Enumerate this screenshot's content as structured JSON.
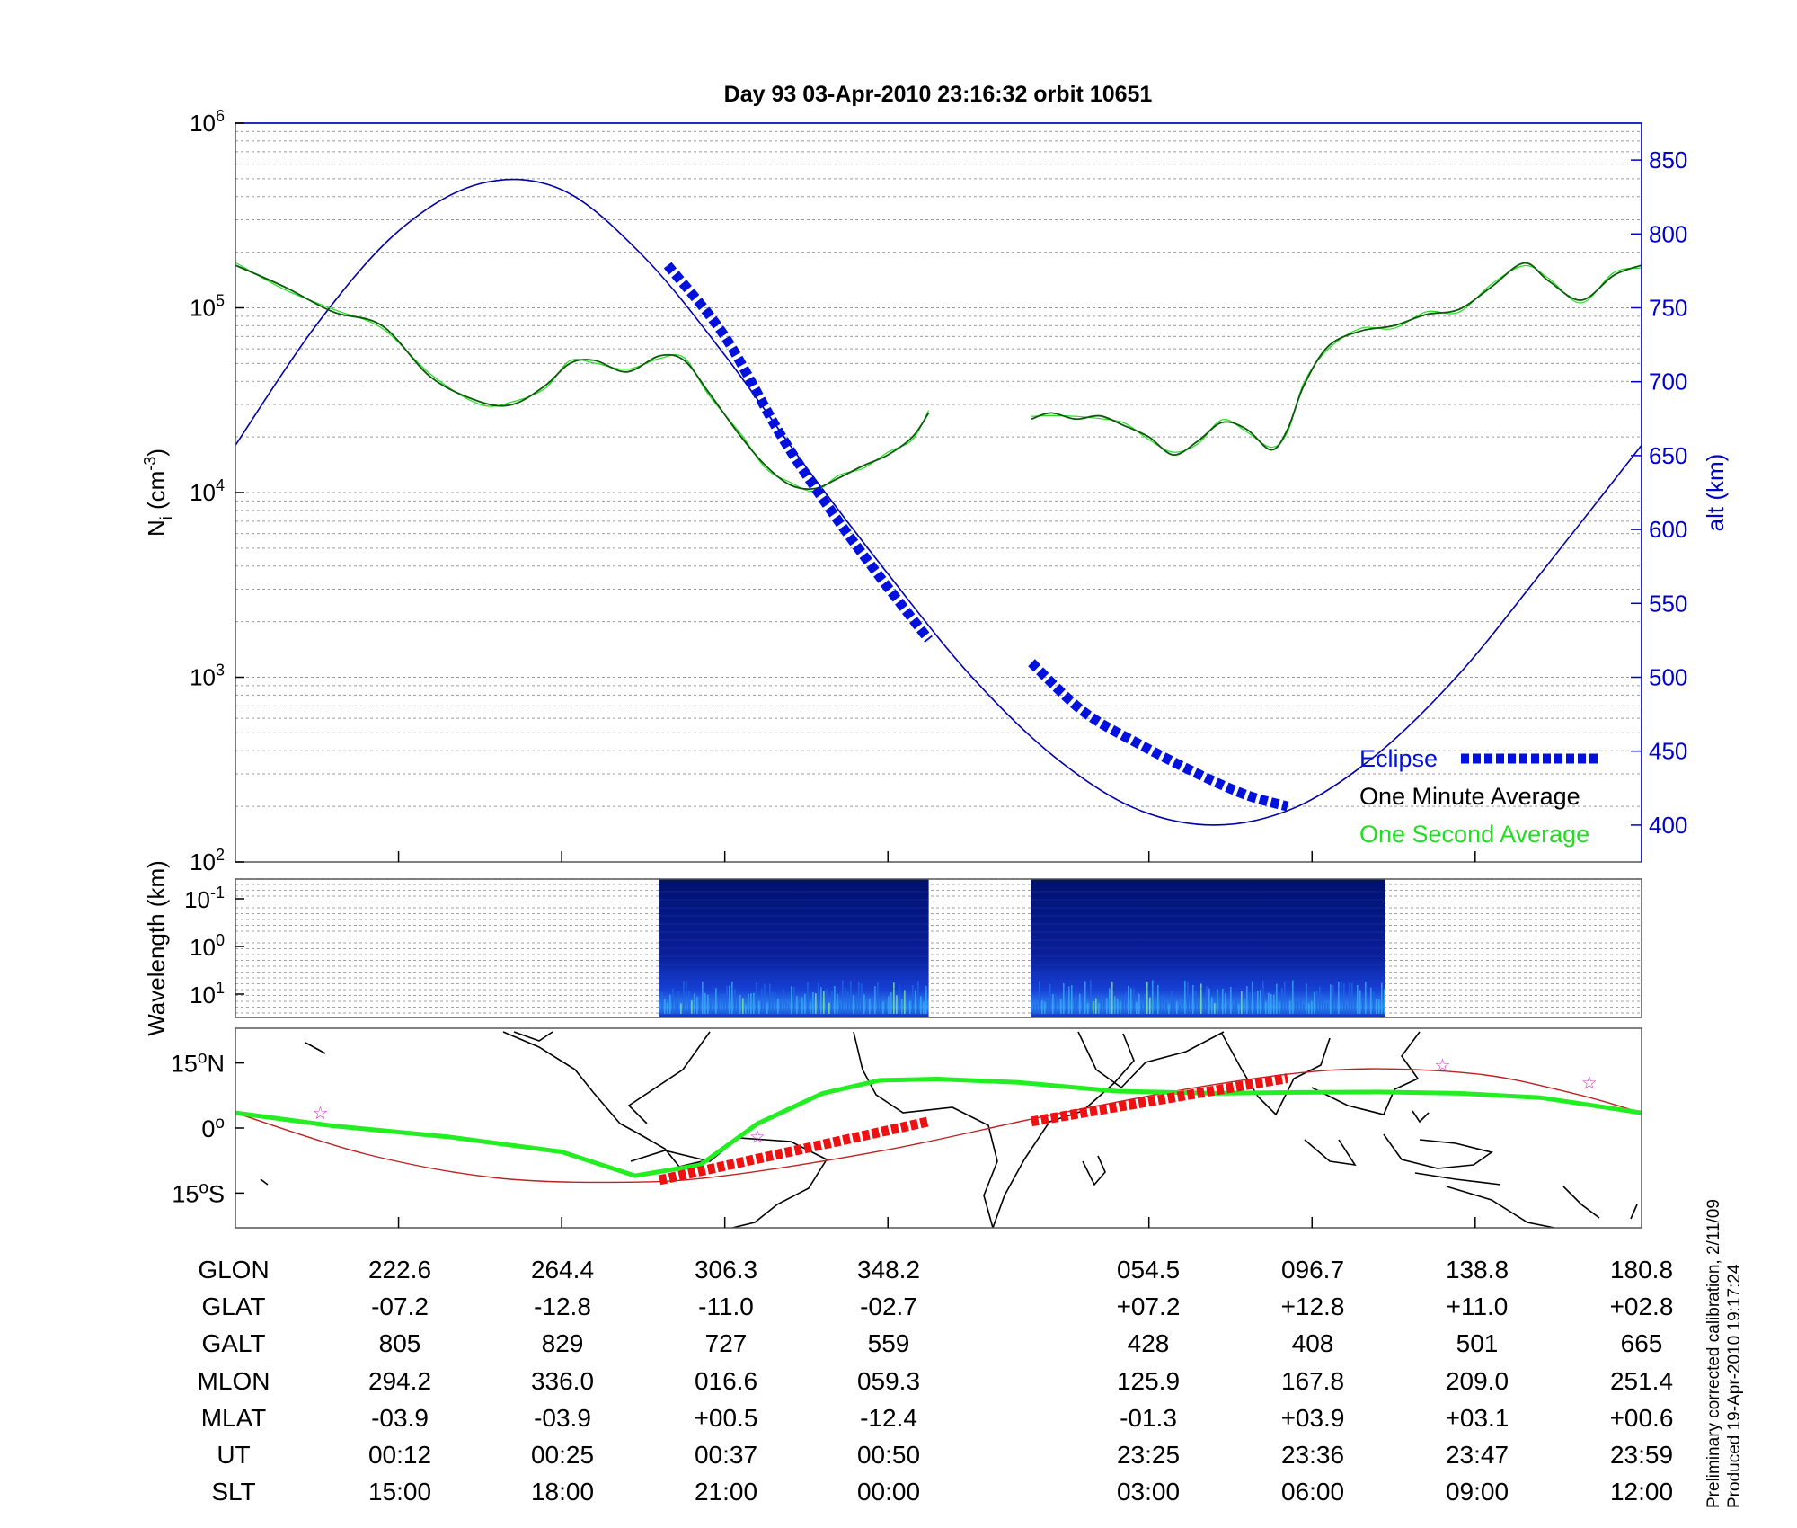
{
  "title": "Day 93  03-Apr-2010 23:16:32   orbit 10651",
  "colors": {
    "density": "#0a5a0a",
    "density_1s": "#22dd22",
    "eclipse": "#0011dd",
    "altitude": "#0000aa",
    "track_eclipse": "#ee1111",
    "track_green": "#22ee22",
    "track_red": "#bb2222",
    "stars": "#cc33cc"
  },
  "chart_data": [
    {
      "type": "line",
      "panel": "ion density / altitude",
      "ylabel_left": "N_i (cm^-3)",
      "ylabel_right": "alt (km)",
      "y_scale_left": "log",
      "ylim_left": [
        100,
        1000000
      ],
      "ylim_right": [
        375,
        875
      ],
      "ticks_left": [
        "10^2",
        "10^3",
        "10^4",
        "10^5",
        "10^6"
      ],
      "ticks_right": [
        400,
        450,
        500,
        550,
        600,
        650,
        700,
        750,
        800,
        850
      ],
      "xlim": [
        0,
        8.62
      ],
      "grid": true,
      "legend_position": "bottom-right",
      "legend": [
        {
          "label": "Eclipse",
          "key": "eclipse"
        },
        {
          "label": "One Minute Average",
          "key": "minute"
        },
        {
          "label": "One Second Average",
          "key": "second"
        }
      ],
      "series": [
        {
          "key": "alt",
          "name": "alt (km)",
          "axis": "right",
          "x": [
            0,
            0.5,
            1,
            1.5,
            2,
            2.5,
            3,
            3.5,
            4,
            4.5,
            5,
            5.5,
            6,
            6.5,
            7,
            7.5,
            8,
            8.62
          ],
          "values": [
            657,
            739,
            802,
            834,
            830,
            785,
            718,
            642,
            570,
            502,
            448,
            412,
            400,
            412,
            448,
            502,
            570,
            657
          ]
        },
        {
          "key": "minute",
          "name": "One Minute Average",
          "axis": "left",
          "segments": [
            {
              "x": [
                0,
                0.3,
                0.6,
                0.9,
                1.2,
                1.5,
                1.7,
                1.9,
                2.05,
                2.2,
                2.4,
                2.6,
                2.75,
                2.9,
                3.1,
                3.25,
                3.4,
                3.55,
                3.7,
                3.85,
                4.0,
                4.15,
                4.25
              ],
              "values": [
                170000,
                130000,
                95000,
                80000,
                42000,
                31000,
                30000,
                38000,
                50000,
                52000,
                45000,
                55000,
                52000,
                35000,
                20000,
                14000,
                11000,
                10500,
                12000,
                14000,
                16000,
                20000,
                27000
              ]
            },
            {
              "x": [
                4.88,
                5.0,
                5.15,
                5.3,
                5.45,
                5.6,
                5.75,
                5.9,
                6.05,
                6.2,
                6.35,
                6.45,
                6.55,
                6.7,
                6.9,
                7.1,
                7.3,
                7.5,
                7.7,
                7.9,
                8.05,
                8.25,
                8.45,
                8.62
              ],
              "values": [
                25000,
                27000,
                25000,
                26000,
                23000,
                20000,
                16000,
                19000,
                24000,
                22000,
                17000,
                22000,
                38000,
                62000,
                75000,
                80000,
                92000,
                98000,
                130000,
                175000,
                140000,
                110000,
                150000,
                170000
              ]
            }
          ]
        },
        {
          "key": "eclipse",
          "name": "Eclipse",
          "axis": "left",
          "segments": [
            {
              "x": [
                2.65,
                3.0,
                3.35,
                3.65,
                3.95,
                4.25
              ],
              "values": [
                170000,
                70000,
                20000,
                8000,
                3500,
                1600
              ]
            },
            {
              "x": [
                4.88,
                5.2,
                5.55,
                5.9,
                6.2,
                6.45
              ],
              "values": [
                1200,
                650,
                430,
                300,
                230,
                200
              ]
            }
          ]
        }
      ]
    },
    {
      "type": "heatmap",
      "panel": "wavelength spectrogram",
      "ylabel": "Wavelength (km)",
      "yticks": [
        "10^-1",
        "10^0",
        "10^1"
      ],
      "segments": [
        {
          "x_start": 2.6,
          "x_end": 4.25
        },
        {
          "x_start": 4.88,
          "x_end": 7.05
        }
      ]
    },
    {
      "type": "line",
      "panel": "ground track map",
      "yticks": [
        "15°N",
        "0°",
        "15°S"
      ],
      "ylim": [
        -23,
        23
      ],
      "series": [
        {
          "key": "track_red",
          "x": [
            0,
            0.8,
            1.6,
            2.4,
            3.0,
            4.0,
            5.0,
            6.0,
            6.8,
            7.6,
            8.2,
            8.62
          ],
          "values": [
            3.5,
            -6,
            -11.5,
            -12.5,
            -11,
            -5,
            3,
            10,
            13.5,
            12.5,
            8,
            3.5
          ]
        },
        {
          "key": "track_green",
          "x": [
            0,
            0.6,
            1.3,
            2.0,
            2.45,
            2.85,
            3.2,
            3.6,
            3.95,
            4.3,
            4.8,
            5.4,
            6.0,
            6.5,
            7.0,
            7.5,
            8.0,
            8.62
          ],
          "values": [
            3.5,
            0.5,
            -2,
            -5.5,
            -11,
            -8.5,
            1,
            8,
            11,
            11.3,
            10.5,
            8.5,
            8,
            8.2,
            8.3,
            8,
            7,
            3.5
          ]
        },
        {
          "key": "track_eclipse",
          "segments": [
            {
              "x": [
                2.6,
                4.25
              ],
              "values": [
                -12,
                1.5
              ]
            },
            {
              "x": [
                4.88,
                6.45
              ],
              "values": [
                1.5,
                11.5
              ]
            }
          ]
        },
        {
          "key": "stars",
          "x": [
            0.52,
            3.2,
            7.4,
            8.3
          ],
          "values": [
            3.5,
            -2,
            14.5,
            10.5
          ]
        }
      ]
    }
  ],
  "stats": {
    "rows": [
      {
        "label": "GLON",
        "values": [
          "222.6",
          "264.4",
          "306.3",
          "348.2",
          "054.5",
          "096.7",
          "138.8",
          "180.8"
        ]
      },
      {
        "label": "GLAT",
        "values": [
          "-07.2",
          "-12.8",
          "-11.0",
          "-02.7",
          "+07.2",
          "+12.8",
          "+11.0",
          "+02.8"
        ]
      },
      {
        "label": "GALT",
        "values": [
          "805",
          "829",
          "727",
          "559",
          "428",
          "408",
          "501",
          "665"
        ]
      },
      {
        "label": "MLON",
        "values": [
          "294.2",
          "336.0",
          "016.6",
          "059.3",
          "125.9",
          "167.8",
          "209.0",
          "251.4"
        ]
      },
      {
        "label": "MLAT",
        "values": [
          "-03.9",
          "-03.9",
          "+00.5",
          "-12.4",
          "-01.3",
          "+03.9",
          "+03.1",
          "+00.6"
        ]
      },
      {
        "label": "UT",
        "values": [
          "00:12",
          "00:25",
          "00:37",
          "00:50",
          "23:25",
          "23:36",
          "23:47",
          "23:59"
        ]
      },
      {
        "label": "SLT",
        "values": [
          "15:00",
          "18:00",
          "21:00",
          "00:00",
          "03:00",
          "06:00",
          "09:00",
          "12:00"
        ]
      }
    ]
  },
  "footnotes": {
    "line1": "Preliminary corrected calibration, 2/11/09",
    "line2": "Produced 19-Apr-2010 19:17:24"
  }
}
